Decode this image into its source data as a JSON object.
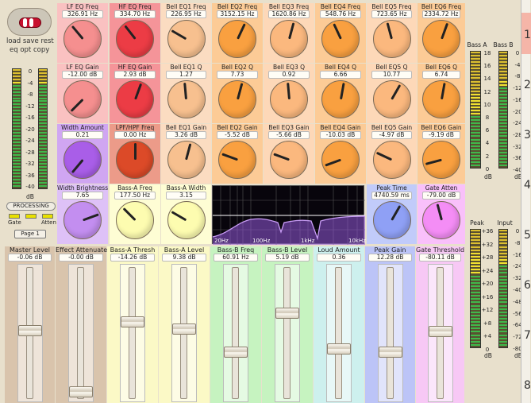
{
  "top_left": {
    "row1": "load save rest",
    "row2": "eq   opt copy"
  },
  "left_meter": {
    "scale": [
      "0",
      "-4",
      "-8",
      "-12",
      "-16",
      "-20",
      "-24",
      "-28",
      "-32",
      "-36",
      "-40"
    ],
    "unit": "dB"
  },
  "processing_label": "PROCESSING",
  "gate_label": "Gate",
  "atten_label": "Atten",
  "page_button": "Page 1",
  "knobs": [
    {
      "label": "LF EQ Freq",
      "value": "326.91 Hz",
      "color": "#f58f8f",
      "angle": 320
    },
    {
      "label": "HF EQ Freq",
      "value": "334.70 Hz",
      "color": "#ec3c45",
      "angle": 322
    },
    {
      "label": "Bell EQ1 Freq",
      "value": "226.95 Hz",
      "color": "#f7c08f",
      "angle": 300
    },
    {
      "label": "Bell EQ2 Freq",
      "value": "3152.15 Hz",
      "color": "#f9a040",
      "angle": 25
    },
    {
      "label": "Bell EQ3 Freq",
      "value": "1620.86 Hz",
      "color": "#fbb87e",
      "angle": 15
    },
    {
      "label": "Bell EQ4 Freq",
      "value": "548.76 Hz",
      "color": "#f9a040",
      "angle": 335
    },
    {
      "label": "Bell EQ5 Freq",
      "value": "723.65 Hz",
      "color": "#fbb87e",
      "angle": 345
    },
    {
      "label": "Bell EQ6 Freq",
      "value": "2334.72 Hz",
      "color": "#f9a040",
      "angle": 20
    },
    {
      "label": "LF EQ Gain",
      "value": "-12.00 dB",
      "color": "#f58f8f",
      "angle": 225
    },
    {
      "label": "HF EQ Gain",
      "value": "2.93 dB",
      "color": "#ec3c45",
      "angle": 20
    },
    {
      "label": "Bell EQ1 Q",
      "value": "1.27",
      "color": "#f7c08f",
      "angle": 355
    },
    {
      "label": "Bell EQ2 Q",
      "value": "7.73",
      "color": "#f9a040",
      "angle": 15
    },
    {
      "label": "Bell EQ3 Q",
      "value": "0.92",
      "color": "#fbb87e",
      "angle": 355
    },
    {
      "label": "Bell EQ4 Q",
      "value": "6.66",
      "color": "#f9a040",
      "angle": 10
    },
    {
      "label": "Bell EQ5 Q",
      "value": "10.77",
      "color": "#fbb87e",
      "angle": 30
    },
    {
      "label": "Bell EQ6 Q",
      "value": "6.74",
      "color": "#f9a040",
      "angle": 10
    },
    {
      "label": "Width Amount",
      "value": "0.21",
      "color": "#a95ee8",
      "angle": 220
    },
    {
      "label": "LPF/HPF Freq",
      "value": "0.00 Hz",
      "color": "#dc4a28",
      "angle": 0
    },
    {
      "label": "Bell EQ1 Gain",
      "value": "3.26 dB",
      "color": "#f7c08f",
      "angle": 15
    },
    {
      "label": "Bell EQ2 Gain",
      "value": "-5.52 dB",
      "color": "#f9a040",
      "angle": 290
    },
    {
      "label": "Bell EQ3 Gain",
      "value": "-5.66 dB",
      "color": "#fbb87e",
      "angle": 290
    },
    {
      "label": "Bell EQ4 Gain",
      "value": "-10.03 dB",
      "color": "#f9a040",
      "angle": 250
    },
    {
      "label": "Bell EQ5 Gain",
      "value": "-4.97 dB",
      "color": "#fbb87e",
      "angle": 295
    },
    {
      "label": "Bell EQ6 Gain",
      "value": "-9.19 dB",
      "color": "#f9a040",
      "angle": 255
    },
    {
      "label": "Width Brightness",
      "value": "7.65",
      "color": "#c38ef0",
      "angle": 70
    },
    {
      "label": "Bass-A Freq",
      "value": "177.50 Hz",
      "color": "#fdfcb0",
      "angle": 315
    },
    {
      "label": "Bass-A Width",
      "value": "3.15",
      "color": "#fdfcb0",
      "angle": 300
    },
    {
      "label": "Peak Time",
      "value": "4740.59 ms",
      "color": "#8fa0f5",
      "angle": 30
    },
    {
      "label": "Gate Atten",
      "value": "-79.00 dB",
      "color": "#f48df5",
      "angle": 345
    }
  ],
  "eq_display": {
    "freq_labels": [
      "20Hz",
      "100Hz",
      "1kHz",
      "10kHz"
    ]
  },
  "faders": [
    {
      "label": "Master Level",
      "value": "-0.06 dB",
      "bg": "#d9c4ac",
      "pos": 0.46
    },
    {
      "label": "Effect Attenuate",
      "value": "-0.00 dB",
      "bg": "#d9c4ac",
      "pos": 0.95
    },
    {
      "label": "Bass-A Thresh",
      "value": "-14.26 dB",
      "bg": "#fbf9c6",
      "pos": 0.39
    },
    {
      "label": "Bass-A Level",
      "value": "9.38 dB",
      "bg": "#fbf9c6",
      "pos": 0.45
    },
    {
      "label": "Bass-B Freq",
      "value": "60.91 Hz",
      "bg": "#c6f3c0",
      "pos": 0.63
    },
    {
      "label": "Bass-B Level",
      "value": "5.19 dB",
      "bg": "#c6f3c0",
      "pos": 0.32
    },
    {
      "label": "Loud Amount",
      "value": "0.36",
      "bg": "#cdf0ee",
      "pos": 0.61
    },
    {
      "label": "Peak Gain",
      "value": "12.28 dB",
      "bg": "#bcc4f7",
      "pos": 0.63
    },
    {
      "label": "Gate Threshold",
      "value": "-80.11 dB",
      "bg": "#f7c8f5",
      "pos": 0.47
    }
  ],
  "bass_meters": {
    "label_a": "Bass A",
    "label_b": "Bass B",
    "scale": [
      "18",
      "16",
      "14",
      "12",
      "10",
      "8",
      "6",
      "4",
      "2",
      "0"
    ],
    "scale_b": [
      "0",
      "-4",
      "-8",
      "-12",
      "-16",
      "-20",
      "-24",
      "-28",
      "-32",
      "-36",
      "-40"
    ],
    "unit": "dB"
  },
  "peak_meters": {
    "label_peak": "Peak",
    "label_input": "Input",
    "scale": [
      "+36",
      "+32",
      "+28",
      "+24",
      "+20",
      "+16",
      "+12",
      "+8",
      "+4",
      "0"
    ],
    "scale_b": [
      "0",
      "-8",
      "-16",
      "-24",
      "-32",
      "-40",
      "-48",
      "-56",
      "-64",
      "-72",
      "-80"
    ],
    "unit": "dB"
  },
  "right_numbers": [
    "1",
    "2",
    "3",
    "4",
    "5",
    "6",
    "7",
    "8"
  ]
}
